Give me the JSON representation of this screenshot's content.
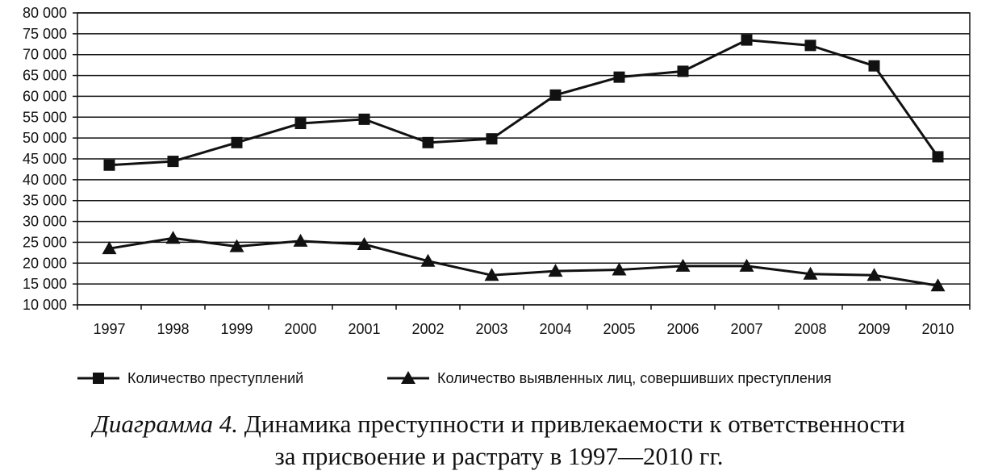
{
  "chart_data": {
    "type": "line",
    "categories": [
      "1997",
      "1998",
      "1999",
      "2000",
      "2001",
      "2002",
      "2003",
      "2004",
      "2005",
      "2006",
      "2007",
      "2008",
      "2009",
      "2010"
    ],
    "series": [
      {
        "name": "Количество преступлений",
        "marker": "square",
        "values": [
          43500,
          44400,
          48900,
          53500,
          54500,
          48900,
          49800,
          60300,
          64600,
          66000,
          73500,
          72200,
          67300,
          45500
        ]
      },
      {
        "name": "Количество выявленных лиц, совершивших преступления",
        "marker": "triangle",
        "values": [
          23500,
          26000,
          24000,
          25300,
          24500,
          20500,
          17100,
          18100,
          18400,
          19300,
          19300,
          17400,
          17100,
          14600
        ]
      }
    ],
    "ylim": [
      10000,
      80000
    ],
    "yticks": [
      "10 000",
      "15 000",
      "20 000",
      "25 000",
      "30 000",
      "35 000",
      "40 000",
      "45 000",
      "50 000",
      "55 000",
      "60 000",
      "65 000",
      "70 000",
      "75 000",
      "80 000"
    ],
    "grid": true,
    "legend": "bottom",
    "line_color": "#111111",
    "title": "",
    "xlabel": "",
    "ylabel": ""
  },
  "caption": {
    "label": "Диаграмма 4.",
    "line1": " Динамика преступности и привлекаемости к ответственности",
    "line2": "за присвоение и растрату в 1997—2010 гг."
  }
}
